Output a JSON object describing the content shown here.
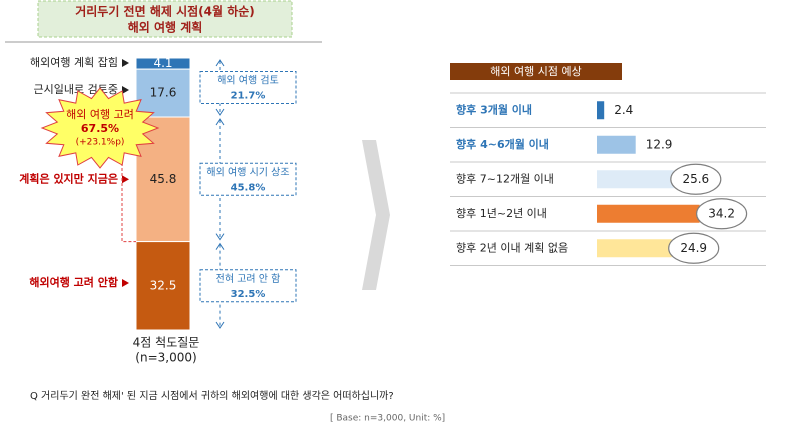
{
  "chart_data": [
    {
      "type": "stacked_bar",
      "title": "거리두기 전면 해제 시점(4월 하순)",
      "subtitle": "해외 여행 계획",
      "series": [
        {
          "name": "해외여행 계획 잡힘",
          "color": "#2e75b6",
          "values": [
            4.1
          ]
        },
        {
          "name": "근시일내로 검토중",
          "color": "#9dc3e6",
          "values": [
            17.6
          ]
        },
        {
          "name": "계획은 있지만 지금은",
          "color": "#f4b183",
          "values": [
            45.8
          ]
        },
        {
          "name": "해외여행 고려 안함",
          "color": "#c55a11",
          "values": [
            32.5
          ]
        }
      ],
      "label_colors": [
        "#222222",
        "#222222",
        "#c00000",
        "#c00000"
      ],
      "groups": [
        {
          "label": "해외 여행 검토",
          "value_label": "21.7%"
        },
        {
          "label": "해외 여행 시기 상조",
          "value_label": "45.8%"
        },
        {
          "label": "전혀 고려 안 함",
          "value_label": "32.5%"
        }
      ],
      "callout": {
        "label": "해외 여행 고려",
        "value_label": "67.5%",
        "note": "(+23.1%p)"
      },
      "x_label": "4점 척도질문",
      "x_sublabel": "(n=3,000)"
    },
    {
      "type": "hbar",
      "title": "해외 여행 시점 예상",
      "categories": [
        "향후 3개월 이내",
        "향후 4~6개월 이내",
        "향후 7~12개월 이내",
        "향후 1년~2년 이내",
        "향후 2년 이내 계획 없음"
      ],
      "values": [
        2.4,
        12.9,
        25.6,
        34.2,
        24.9
      ],
      "colors": [
        "#2e75b6",
        "#9dc3e6",
        "#deebf7",
        "#ed7d31",
        "#ffe699"
      ],
      "label_colors": [
        "#2e75b6",
        "#2e75b6",
        "#222222",
        "#222222",
        "#222222"
      ],
      "circled": [
        false,
        false,
        true,
        true,
        true
      ]
    }
  ],
  "question": "Q 거리두기 완전 해제' 된 지금 시점에서 귀하의 해외여행에 대한 생각은 어떠하십니까?",
  "base_note": "[ Base: n=3,000, Unit: %]"
}
